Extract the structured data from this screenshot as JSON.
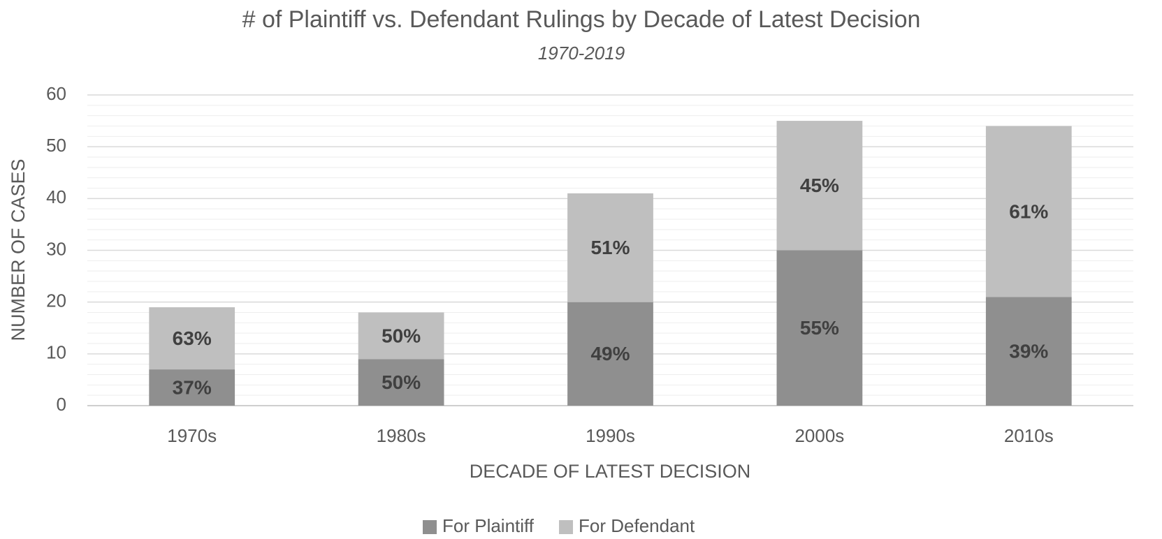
{
  "chart_data": {
    "type": "stacked_bar",
    "title": "# of Plaintiff vs. Defendant Rulings by Decade of Latest Decision",
    "subtitle": "1970-2019",
    "x_label": "DECADE OF LATEST DECISION",
    "y_label": "NUMBER OF CASES",
    "categories": [
      "1970s",
      "1980s",
      "1990s",
      "2000s",
      "2010s"
    ],
    "series": [
      {
        "name": "For Plaintiff",
        "color": "#8f8f8f",
        "values": [
          7,
          9,
          20,
          30,
          21
        ],
        "labels": [
          "37%",
          "50%",
          "49%",
          "55%",
          "39%"
        ]
      },
      {
        "name": "For Defendant",
        "color": "#bfbfbf",
        "values": [
          12,
          9,
          21,
          25,
          33
        ],
        "labels": [
          "63%",
          "50%",
          "51%",
          "45%",
          "61%"
        ]
      }
    ],
    "ylim": [
      0,
      60
    ],
    "yticks": [
      0,
      10,
      20,
      30,
      40,
      50,
      60
    ],
    "minor_yticks": [
      2,
      4,
      6,
      8,
      12,
      14,
      16,
      18,
      22,
      24,
      26,
      28,
      32,
      34,
      36,
      38,
      42,
      44,
      46,
      48,
      52,
      54,
      56,
      58
    ],
    "grid": true,
    "legend": "bottom"
  }
}
